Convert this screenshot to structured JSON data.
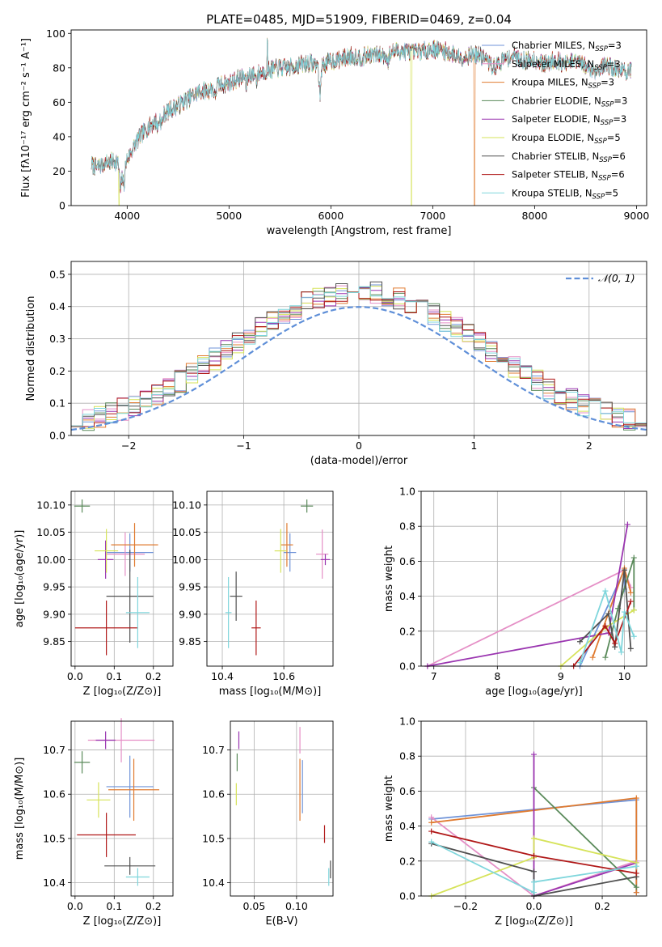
{
  "palette": {
    "Chabrier MILES": "#6f93d8",
    "Salpeter MILES": "#e58fc6",
    "Kroupa MILES": "#e07b30",
    "Chabrier ELODIE": "#5a8a5a",
    "Salpeter ELODIE": "#9a35b0",
    "Kroupa ELODIE": "#d6e35a",
    "Chabrier STELIB": "#505050",
    "Salpeter STELIB": "#b01818",
    "Kroupa STELIB": "#7fd6dc"
  },
  "chart_data": [
    {
      "id": "spectrum",
      "type": "line",
      "title": "PLATE=0485, MJD=51909, FIBERID=0469, z=0.04",
      "xlabel": "wavelength [Angstrom, rest frame]",
      "ylabel": "Flux [fλ10⁻¹⁷ erg cm⁻² s⁻¹ A⁻¹]",
      "xlim": [
        3450,
        9100
      ],
      "ylim": [
        0,
        102
      ],
      "xticks": [
        "4000",
        "5000",
        "6000",
        "7000",
        "8000",
        "9000"
      ],
      "yticks": [
        "0",
        "20",
        "40",
        "60",
        "80",
        "100"
      ],
      "grid": false,
      "legend_position": "right",
      "series": [
        {
          "name": "Chabrier MILES, N_SSP=3"
        },
        {
          "name": "Salpeter MILES, N_SSP=3"
        },
        {
          "name": "Kroupa MILES, N_SSP=3"
        },
        {
          "name": "Chabrier ELODIE, N_SSP=3"
        },
        {
          "name": "Salpeter ELODIE, N_SSP=3"
        },
        {
          "name": "Kroupa ELODIE, N_SSP=5"
        },
        {
          "name": "Chabrier STELIB, N_SSP=6"
        },
        {
          "name": "Salpeter STELIB, N_SSP=6"
        },
        {
          "name": "Kroupa STELIB, N_SSP=5"
        }
      ],
      "continuum": {
        "x": [
          3650,
          3700,
          3800,
          3900,
          3950,
          4000,
          4100,
          4200,
          4300,
          4400,
          4500,
          4600,
          4700,
          4800,
          4900,
          5000,
          5100,
          5200,
          5300,
          5400,
          5500,
          5600,
          5700,
          5800,
          5900,
          6000,
          6100,
          6200,
          6300,
          6400,
          6500,
          6600,
          6700,
          6800,
          6900,
          7000,
          7100,
          7200,
          7300,
          7400,
          7500,
          7600,
          7700,
          7800,
          7900,
          8000,
          8100,
          8200,
          8300,
          8400,
          8500,
          8600,
          8700,
          8800,
          8900
        ],
        "y": [
          24,
          22,
          25,
          26,
          18,
          27,
          38,
          45,
          50,
          55,
          58,
          62,
          66,
          67,
          70,
          71,
          74,
          76,
          77,
          79,
          80,
          80,
          82,
          83,
          81,
          84,
          85,
          87,
          86,
          88,
          87,
          89,
          90,
          89,
          90,
          91,
          90,
          88,
          86,
          88,
          86,
          80,
          85,
          87,
          84,
          85,
          82,
          85,
          82,
          84,
          81,
          78,
          82,
          79,
          78
        ]
      },
      "cutoffs": [
        {
          "series": "Kroupa ELODIE, N_SSP=5",
          "x": 3920
        },
        {
          "series": "Kroupa ELODIE, N_SSP=5",
          "x": 6790
        },
        {
          "series": "Kroupa MILES, N_SSP=3",
          "x": 7410
        }
      ]
    },
    {
      "id": "residuals",
      "type": "histogram",
      "xlabel": "(data-model)/error",
      "ylabel": "Normed distribution",
      "xlim": [
        -2.5,
        2.5
      ],
      "ylim": [
        0,
        0.54
      ],
      "xticks": [
        "−2",
        "−1",
        "0",
        "1",
        "2"
      ],
      "yticks": [
        "0.0",
        "0.1",
        "0.2",
        "0.3",
        "0.4",
        "0.5"
      ],
      "grid": true,
      "legend_position": "top-right",
      "reference": {
        "name": "𝒩(0, 1)",
        "mean": 0,
        "sigma": 1
      },
      "bin_width": 0.1
    },
    {
      "id": "age-vs-Z",
      "type": "errorbar",
      "xlabel": "Z [log₁₀(Z/Z⊙)]",
      "ylabel": "age  [log₁₀(age/yr)]",
      "xlim": [
        -0.01,
        0.25
      ],
      "ylim": [
        9.805,
        10.125
      ],
      "xticks": [
        "0.0",
        "0.1",
        "0.2"
      ],
      "yticks": [
        "9.85",
        "9.90",
        "9.95",
        "10.00",
        "10.05",
        "10.10"
      ],
      "grid": true,
      "points": [
        {
          "series": "Chabrier MILES",
          "x": 0.14,
          "y": 10.013,
          "xerr": 0.06,
          "yerr": 0.035
        },
        {
          "series": "Salpeter MILES",
          "x": 0.128,
          "y": 10.01,
          "xerr": 0.05,
          "yerr": 0.04
        },
        {
          "series": "Kroupa MILES",
          "x": 0.152,
          "y": 10.027,
          "xerr": 0.06,
          "yerr": 0.04
        },
        {
          "series": "Chabrier ELODIE",
          "x": 0.018,
          "y": 10.098,
          "xerr": 0.02,
          "yerr": 0.012
        },
        {
          "series": "Salpeter ELODIE",
          "x": 0.078,
          "y": 10.0,
          "xerr": 0.02,
          "yerr": 0.035
        },
        {
          "series": "Kroupa ELODIE",
          "x": 0.08,
          "y": 10.016,
          "xerr": 0.03,
          "yerr": 0.04
        },
        {
          "series": "Chabrier STELIB",
          "x": 0.14,
          "y": 9.933,
          "xerr": 0.06,
          "yerr": 0.085
        },
        {
          "series": "Salpeter STELIB",
          "x": 0.08,
          "y": 9.875,
          "xerr": 0.08,
          "yerr": 0.05
        },
        {
          "series": "Kroupa STELIB",
          "x": 0.16,
          "y": 9.903,
          "xerr": 0.03,
          "yerr": 0.065
        }
      ]
    },
    {
      "id": "age-vs-mass",
      "type": "errorbar",
      "xlabel": "mass [log₁₀(M/M⊙)]",
      "ylabel": "",
      "xlim": [
        10.35,
        10.76
      ],
      "ylim": [
        9.805,
        10.125
      ],
      "xticks": [
        "10.4",
        "10.6"
      ],
      "yticks": [
        "9.85",
        "9.90",
        "9.95",
        "10.00",
        "10.05",
        "10.10"
      ],
      "grid": true,
      "points": [
        {
          "series": "Chabrier MILES",
          "x": 10.62,
          "y": 10.013,
          "xerr": 0.02,
          "yerr": 0.035
        },
        {
          "series": "Salpeter MILES",
          "x": 10.725,
          "y": 10.01,
          "xerr": 0.02,
          "yerr": 0.045
        },
        {
          "series": "Kroupa MILES",
          "x": 10.61,
          "y": 10.027,
          "xerr": 0.02,
          "yerr": 0.04
        },
        {
          "series": "Chabrier ELODIE",
          "x": 10.675,
          "y": 10.098,
          "xerr": 0.02,
          "yerr": 0.012
        },
        {
          "series": "Salpeter ELODIE",
          "x": 10.735,
          "y": 10.0,
          "xerr": 0.015,
          "yerr": 0.01
        },
        {
          "series": "Kroupa ELODIE",
          "x": 10.59,
          "y": 10.016,
          "xerr": 0.02,
          "yerr": 0.04
        },
        {
          "series": "Chabrier STELIB",
          "x": 10.445,
          "y": 9.933,
          "xerr": 0.02,
          "yerr": 0.045
        },
        {
          "series": "Salpeter STELIB",
          "x": 10.51,
          "y": 9.875,
          "xerr": 0.015,
          "yerr": 0.05
        },
        {
          "series": "Kroupa STELIB",
          "x": 10.42,
          "y": 9.903,
          "xerr": 0.01,
          "yerr": 0.065
        }
      ]
    },
    {
      "id": "weight-vs-age",
      "type": "line",
      "xlabel": "age  [log₁₀(age/yr)]",
      "ylabel": "mass weight",
      "xlim": [
        6.8,
        10.35
      ],
      "ylim": [
        0,
        1
      ],
      "xticks": [
        "7",
        "8",
        "9",
        "10"
      ],
      "yticks": [
        "0.0",
        "0.2",
        "0.4",
        "0.6",
        "0.8",
        "1.0"
      ],
      "grid": true,
      "series": [
        {
          "series": "Chabrier MILES",
          "x": [
            9.3,
            10.0,
            10.0
          ],
          "y": [
            0.0,
            0.55,
            0.44
          ]
        },
        {
          "series": "Salpeter MILES",
          "x": [
            6.9,
            10.0,
            10.1
          ],
          "y": [
            0.0,
            0.55,
            0.45
          ]
        },
        {
          "series": "Kroupa MILES",
          "x": [
            9.5,
            10.0,
            10.1
          ],
          "y": [
            0.05,
            0.56,
            0.42
          ]
        },
        {
          "series": "Chabrier ELODIE",
          "x": [
            9.7,
            9.9,
            10.15,
            10.15
          ],
          "y": [
            0.05,
            0.33,
            0.62,
            0.32
          ]
        },
        {
          "series": "Salpeter ELODIE",
          "x": [
            6.9,
            9.75,
            10.05
          ],
          "y": [
            0.0,
            0.19,
            0.81
          ]
        },
        {
          "series": "Kroupa ELODIE",
          "x": [
            9.0,
            9.7,
            10.15
          ],
          "y": [
            0.0,
            0.22,
            0.32
          ]
        },
        {
          "series": "Chabrier STELIB",
          "x": [
            9.3,
            9.75,
            9.85,
            10.0,
            10.1
          ],
          "y": [
            0.14,
            0.3,
            0.11,
            0.55,
            0.1
          ]
        },
        {
          "series": "Salpeter STELIB",
          "x": [
            9.2,
            9.7,
            9.85,
            10.1
          ],
          "y": [
            0.0,
            0.23,
            0.13,
            0.37
          ]
        },
        {
          "series": "Kroupa STELIB",
          "x": [
            9.3,
            9.7,
            9.95,
            10.0,
            10.15
          ],
          "y": [
            0.02,
            0.43,
            0.08,
            0.31,
            0.17
          ]
        }
      ]
    },
    {
      "id": "mass-vs-Z",
      "type": "errorbar",
      "xlabel": "Z [log₁₀(Z/Z⊙)]",
      "ylabel": "mass [log₁₀(M/M⊙)]",
      "xlim": [
        -0.01,
        0.25
      ],
      "ylim": [
        10.37,
        10.765
      ],
      "xticks": [
        "0.0",
        "0.1",
        "0.2"
      ],
      "yticks": [
        "10.4",
        "10.5",
        "10.6",
        "10.7"
      ],
      "grid": true,
      "points": [
        {
          "series": "Chabrier MILES",
          "x": 0.14,
          "y": 10.617,
          "xerr": 0.06,
          "yerr": 0.07
        },
        {
          "series": "Salpeter MILES",
          "x": 0.118,
          "y": 10.722,
          "xerr": 0.085,
          "yerr": 0.05
        },
        {
          "series": "Kroupa MILES",
          "x": 0.15,
          "y": 10.61,
          "xerr": 0.065,
          "yerr": 0.07
        },
        {
          "series": "Chabrier ELODIE",
          "x": 0.018,
          "y": 10.672,
          "xerr": 0.02,
          "yerr": 0.025
        },
        {
          "series": "Salpeter ELODIE",
          "x": 0.078,
          "y": 10.722,
          "xerr": 0.025,
          "yerr": 0.02
        },
        {
          "series": "Kroupa ELODIE",
          "x": 0.06,
          "y": 10.587,
          "xerr": 0.03,
          "yerr": 0.04
        },
        {
          "series": "Chabrier STELIB",
          "x": 0.14,
          "y": 10.438,
          "xerr": 0.065,
          "yerr": 0.02
        },
        {
          "series": "Salpeter STELIB",
          "x": 0.08,
          "y": 10.508,
          "xerr": 0.075,
          "yerr": 0.05
        },
        {
          "series": "Kroupa STELIB",
          "x": 0.16,
          "y": 10.413,
          "xerr": 0.03,
          "yerr": 0.02
        }
      ]
    },
    {
      "id": "mass-vs-EBV",
      "type": "errorbar",
      "xlabel": "E(B-V)",
      "ylabel": "",
      "xlim": [
        0.022,
        0.143
      ],
      "ylim": [
        10.37,
        10.765
      ],
      "xticks": [
        "0.05",
        "0.10"
      ],
      "yticks": [
        "10.4",
        "10.5",
        "10.6",
        "10.7"
      ],
      "grid": true,
      "points": [
        {
          "series": "Chabrier MILES",
          "x": 0.107,
          "y": 10.617,
          "xerr": 0,
          "yerr": 0.06
        },
        {
          "series": "Salpeter MILES",
          "x": 0.104,
          "y": 10.722,
          "xerr": 0,
          "yerr": 0.03
        },
        {
          "series": "Kroupa MILES",
          "x": 0.104,
          "y": 10.61,
          "xerr": 0,
          "yerr": 0.07
        },
        {
          "series": "Chabrier ELODIE",
          "x": 0.03,
          "y": 10.672,
          "xerr": 0,
          "yerr": 0.02
        },
        {
          "series": "Salpeter ELODIE",
          "x": 0.032,
          "y": 10.722,
          "xerr": 0,
          "yerr": 0.02
        },
        {
          "series": "Kroupa ELODIE",
          "x": 0.029,
          "y": 10.6,
          "xerr": 0,
          "yerr": 0.025
        },
        {
          "series": "Chabrier STELIB",
          "x": 0.14,
          "y": 10.43,
          "xerr": 0,
          "yerr": 0.02
        },
        {
          "series": "Salpeter STELIB",
          "x": 0.133,
          "y": 10.51,
          "xerr": 0,
          "yerr": 0.02
        },
        {
          "series": "Kroupa STELIB",
          "x": 0.138,
          "y": 10.413,
          "xerr": 0,
          "yerr": 0.02
        }
      ]
    },
    {
      "id": "weight-vs-Z",
      "type": "line",
      "xlabel": "Z [log₁₀(Z/Z⊙)]",
      "ylabel": "mass weight",
      "xlim": [
        -0.33,
        0.33
      ],
      "ylim": [
        0,
        1
      ],
      "xticks": [
        "−0.2",
        "0.0",
        "0.2"
      ],
      "yticks": [
        "0.0",
        "0.2",
        "0.4",
        "0.6",
        "0.8",
        "1.0"
      ],
      "grid": true,
      "series": [
        {
          "series": "Chabrier MILES",
          "x": [
            -0.3,
            0.3,
            0.3
          ],
          "y": [
            0.44,
            0.55,
            0.02
          ]
        },
        {
          "series": "Salpeter MILES",
          "x": [
            -0.3,
            0.0,
            0.3
          ],
          "y": [
            0.45,
            0.0,
            0.2
          ]
        },
        {
          "series": "Kroupa MILES",
          "x": [
            -0.3,
            0.3,
            0.3
          ],
          "y": [
            0.42,
            0.56,
            0.02
          ]
        },
        {
          "series": "Chabrier ELODIE",
          "x": [
            0.0,
            0.3
          ],
          "y": [
            0.62,
            0.05
          ]
        },
        {
          "series": "Salpeter ELODIE",
          "x": [
            0.0,
            0.0,
            0.3
          ],
          "y": [
            0.81,
            0.0,
            0.19
          ]
        },
        {
          "series": "Kroupa ELODIE",
          "x": [
            -0.3,
            0.0,
            0.0,
            0.3
          ],
          "y": [
            0.0,
            0.22,
            0.33,
            0.19
          ]
        },
        {
          "series": "Chabrier STELIB",
          "x": [
            -0.3,
            0.0,
            0.0,
            0.3
          ],
          "y": [
            0.3,
            0.14,
            0.0,
            0.11
          ]
        },
        {
          "series": "Salpeter STELIB",
          "x": [
            -0.3,
            0.0,
            0.3
          ],
          "y": [
            0.37,
            0.23,
            0.13
          ]
        },
        {
          "series": "Kroupa STELIB",
          "x": [
            -0.3,
            0.0,
            0.0,
            0.3
          ],
          "y": [
            0.31,
            0.02,
            0.08,
            0.17
          ]
        }
      ]
    }
  ]
}
